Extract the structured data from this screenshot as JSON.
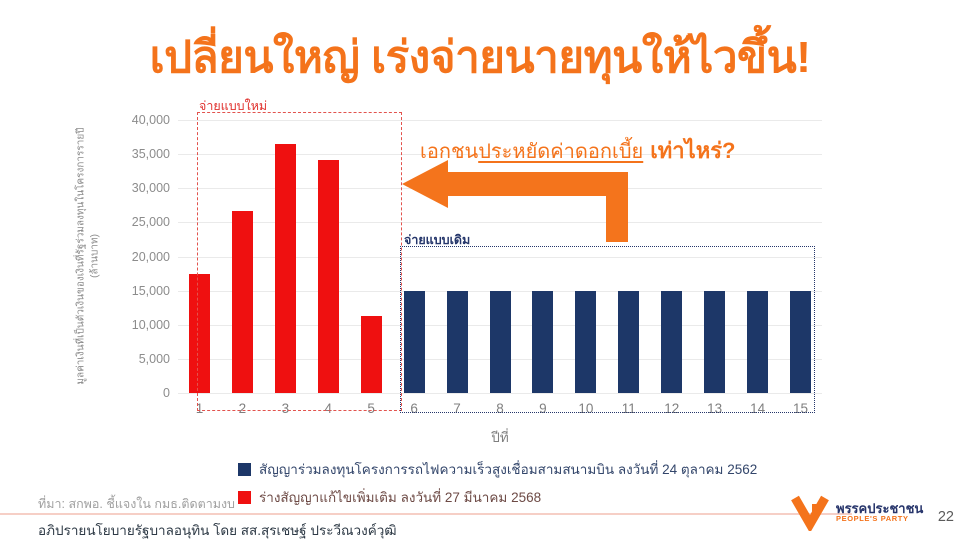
{
  "slide": {
    "title": "เปลี่ยนใหญ่ เร่งจ่ายนายทุนให้ไวขึ้น!",
    "page_number": "22"
  },
  "chart_data": {
    "type": "bar",
    "xlabel": "ปีที่",
    "ylabel": "มูลค่าเงินที่เป็นตัวเงินของเงินที่รัฐร่วมลงทุนในโครงการรายปี",
    "ylabel_unit": "(ล้านบาท)",
    "categories": [
      1,
      2,
      3,
      4,
      5,
      6,
      7,
      8,
      9,
      10,
      11,
      12,
      13,
      14,
      15
    ],
    "ylim": [
      0,
      40000
    ],
    "ytick_step": 5000,
    "grid": true,
    "legend_position": "bottom",
    "series": [
      {
        "name": "ร่างสัญญาแก้ไขเพิ่มเติม ลงวันที่ 27 มีนาคม 2568",
        "color": "#EF1010",
        "label_color": "#E0322E",
        "x": [
          1,
          2,
          3,
          4,
          5
        ],
        "values": [
          17364,
          26599,
          36517,
          34175,
          11278
        ]
      },
      {
        "name": "สัญญาร่วมลงทุนโครงการรถไฟความเร็วสูงเชื่อมสามสนามบิน ลงวันที่ 24 ตุลาคม 2562",
        "color": "#1D3768",
        "label_color": "#25477E",
        "x": [
          6,
          7,
          8,
          9,
          10,
          11,
          12,
          13,
          14,
          15
        ],
        "values": [
          14965,
          14965,
          14965,
          14965,
          14965,
          14965,
          14965,
          14965,
          14965,
          14965
        ]
      }
    ],
    "annotations": {
      "new_payment_box_label": "จ่ายแบบใหม่",
      "old_payment_box_label": "จ่ายแบบเดิม",
      "arrow_question_prefix": "เอกชน",
      "arrow_question_underlined": "ประหยัดค่าดอกเบี้ย",
      "arrow_question_bold": "เท่าไหร่?"
    }
  },
  "legend": {
    "items": [
      {
        "label": "สัญญาร่วมลงทุนโครงการรถไฟความเร็วสูงเชื่อมสามสนามบิน ลงวันที่ 24 ตุลาคม 2562",
        "color": "#1D3768"
      },
      {
        "label": "ร่างสัญญาแก้ไขเพิ่มเติม ลงวันที่ 27 มีนาคม 2568",
        "color": "#EF1010"
      }
    ]
  },
  "footer": {
    "source": "ที่มา: สกพอ. ชี้แจงใน กมธ.ติดตามงบ",
    "credit": "อภิปรายนโยบายรัฐบาลอนุทิน โดย สส.สุรเชษฐ์ ประวีณวงค์วุฒิ"
  },
  "logo": {
    "name_th": "พรรคประชาชน",
    "name_en": "PEOPLE'S PARTY"
  },
  "colors": {
    "accent_orange": "#F4731B",
    "bar_red": "#EF1010",
    "bar_navy": "#1D3768",
    "grid_gray": "#EAEAEA"
  }
}
